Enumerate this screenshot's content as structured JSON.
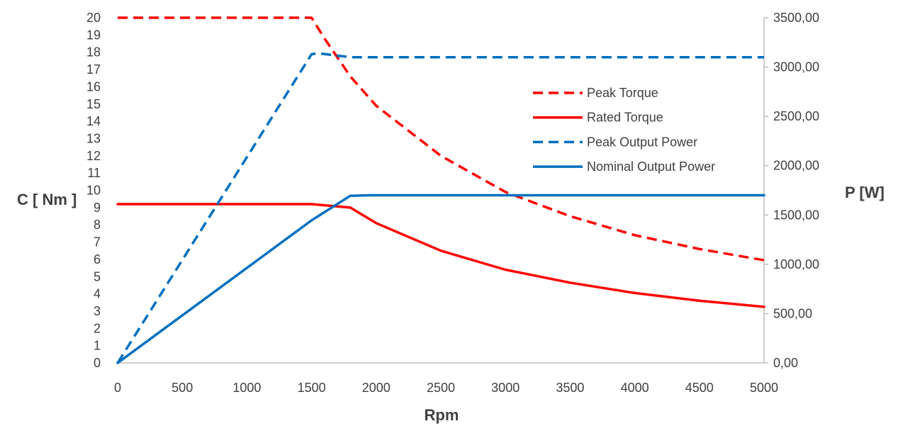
{
  "chart_data": {
    "type": "line",
    "xlabel": "Rpm",
    "ylabel_left": "C [ Nm ]",
    "ylabel_right": "P [W]",
    "xlim": [
      0,
      5000
    ],
    "ylim_left": [
      0,
      20
    ],
    "ylim_right": [
      0,
      3500
    ],
    "x_ticks": [
      "0",
      "500",
      "1000",
      "1500",
      "2000",
      "2500",
      "3000",
      "3500",
      "4000",
      "4500",
      "5000"
    ],
    "y_left_ticks": [
      "0",
      "1",
      "2",
      "3",
      "4",
      "5",
      "6",
      "7",
      "8",
      "9",
      "10",
      "11",
      "12",
      "13",
      "14",
      "15",
      "16",
      "17",
      "18",
      "19",
      "20"
    ],
    "y_right_ticks": [
      "0,00",
      "500,00",
      "1000,00",
      "1500,00",
      "2000,00",
      "2500,00",
      "3000,00",
      "3500,00"
    ],
    "grid": false,
    "legend_position": "right-center",
    "series": [
      {
        "name": "Peak Torque",
        "axis": "left",
        "style": "dashed",
        "color": "#ff0000",
        "x": [
          0,
          1500,
          1600,
          1700,
          1800,
          2000,
          2500,
          3000,
          3500,
          4000,
          4500,
          5000
        ],
        "y": [
          20,
          20,
          18.8,
          17.7,
          16.6,
          14.9,
          12.0,
          9.9,
          8.5,
          7.4,
          6.6,
          5.95
        ]
      },
      {
        "name": "Rated Torque",
        "axis": "left",
        "style": "solid",
        "color": "#ff0000",
        "x": [
          0,
          1500,
          1800,
          2000,
          2500,
          3000,
          3500,
          4000,
          4500,
          5000
        ],
        "y": [
          9.2,
          9.2,
          9.0,
          8.1,
          6.5,
          5.4,
          4.65,
          4.05,
          3.6,
          3.25
        ]
      },
      {
        "name": "Peak Output Power",
        "axis": "right",
        "style": "dashed",
        "color": "#0070c0",
        "x": [
          0,
          1500,
          1550,
          1800,
          5000
        ],
        "y": [
          0,
          3130,
          3140,
          3100,
          3100
        ]
      },
      {
        "name": "Nominal Output Power",
        "axis": "right",
        "style": "solid",
        "color": "#0070c0",
        "x": [
          0,
          1500,
          1800,
          1950,
          5000
        ],
        "y": [
          0,
          1445,
          1695,
          1700,
          1700
        ]
      }
    ]
  }
}
